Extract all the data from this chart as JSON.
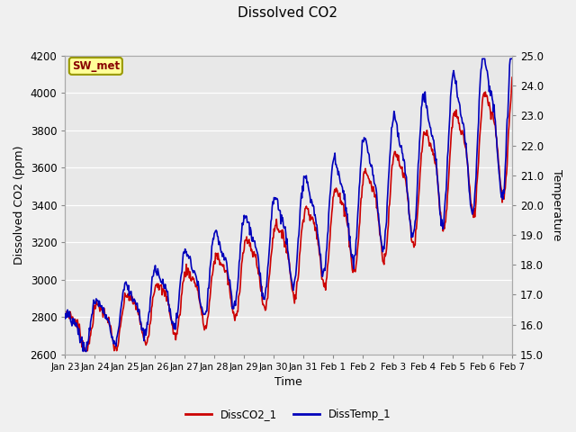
{
  "title": "Dissolved CO2",
  "xlabel": "Time",
  "ylabel_left": "Dissolved CO2 (ppm)",
  "ylabel_right": "Temperature",
  "annotation": "SW_met",
  "legend_labels": [
    "DissCO2_1",
    "DissTemp_1"
  ],
  "legend_colors": [
    "#cc0000",
    "#0000bb"
  ],
  "ylim_left": [
    2600,
    4200
  ],
  "ylim_right": [
    15.0,
    25.0
  ],
  "fig_color": "#f0f0f0",
  "plot_bg_color": "#e8e8e8",
  "xtick_labels": [
    "Jan 23",
    "Jan 24",
    "Jan 25",
    "Jan 26",
    "Jan 27",
    "Jan 28",
    "Jan 29",
    "Jan 30",
    "Jan 31",
    "Feb 1",
    "Feb 2",
    "Feb 3",
    "Feb 4",
    "Feb 5",
    "Feb 6",
    "Feb 7"
  ],
  "yticks_left": [
    2600,
    2800,
    3000,
    3200,
    3400,
    3600,
    3800,
    4000,
    4200
  ],
  "yticks_right": [
    15.0,
    16.0,
    17.0,
    18.0,
    19.0,
    20.0,
    21.0,
    22.0,
    23.0,
    24.0,
    25.0
  ],
  "line_width": 1.2
}
